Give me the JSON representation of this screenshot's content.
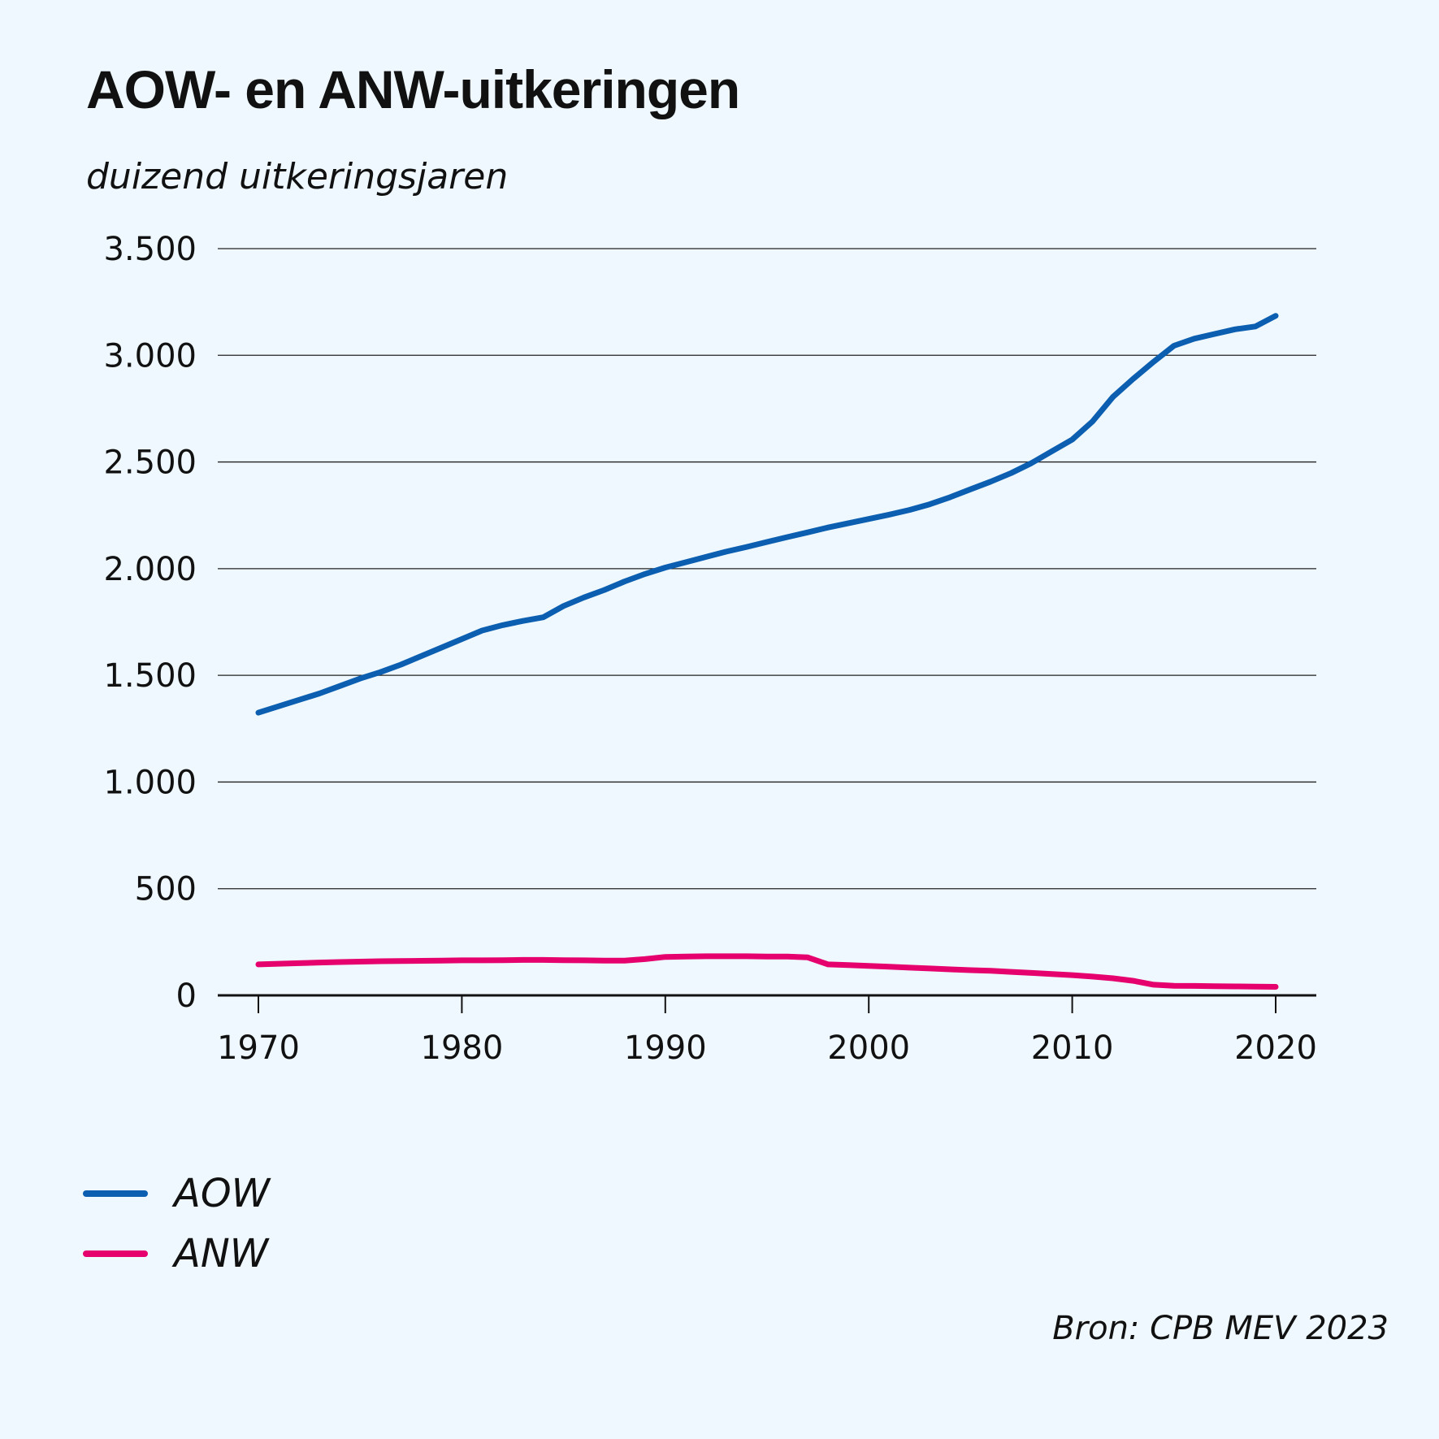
{
  "chart_data": {
    "type": "line",
    "title": "AOW- en ANW-uitkeringen",
    "subtitle": "duizend uitkeringsjaren",
    "source": "Bron: CPB MEV 2023",
    "xlim": [
      1970,
      2020
    ],
    "ylim": [
      0,
      3500
    ],
    "x_ticks": [
      1970,
      1980,
      1990,
      2000,
      2010,
      2020
    ],
    "y_ticks": [
      {
        "value": 0,
        "label": "0"
      },
      {
        "value": 500,
        "label": "500"
      },
      {
        "value": 1000,
        "label": "1.000"
      },
      {
        "value": 1500,
        "label": "1.500"
      },
      {
        "value": 2000,
        "label": "2.000"
      },
      {
        "value": 2500,
        "label": "2.500"
      },
      {
        "value": 3000,
        "label": "3.000"
      },
      {
        "value": 3500,
        "label": "3.500"
      }
    ],
    "grid": true,
    "legend_position": "bottom-left",
    "x": [
      1970,
      1971,
      1972,
      1973,
      1974,
      1975,
      1976,
      1977,
      1978,
      1979,
      1980,
      1981,
      1982,
      1983,
      1984,
      1985,
      1986,
      1987,
      1988,
      1989,
      1990,
      1991,
      1992,
      1993,
      1994,
      1995,
      1996,
      1997,
      1998,
      1999,
      2000,
      2001,
      2002,
      2003,
      2004,
      2005,
      2006,
      2007,
      2008,
      2009,
      2010,
      2011,
      2012,
      2013,
      2014,
      2015,
      2016,
      2017,
      2018,
      2019,
      2020
    ],
    "series": [
      {
        "name": "AOW",
        "color": "#0b5eb0",
        "values": [
          1325,
          1355,
          1385,
          1415,
          1450,
          1485,
          1515,
          1550,
          1590,
          1630,
          1670,
          1710,
          1735,
          1755,
          1772,
          1825,
          1865,
          1900,
          1940,
          1975,
          2005,
          2030,
          2055,
          2080,
          2102,
          2125,
          2148,
          2170,
          2193,
          2213,
          2233,
          2253,
          2275,
          2302,
          2335,
          2372,
          2408,
          2448,
          2495,
          2550,
          2605,
          2690,
          2805,
          2890,
          2970,
          3045,
          3078,
          3100,
          3122,
          3135,
          3185
        ]
      },
      {
        "name": "ANW",
        "color": "#e6006e",
        "values": [
          145,
          148,
          151,
          154,
          156,
          158,
          160,
          161,
          162,
          163,
          164,
          164,
          165,
          166,
          166,
          165,
          164,
          163,
          163,
          170,
          180,
          182,
          183,
          183,
          183,
          182,
          182,
          178,
          145,
          142,
          138,
          134,
          130,
          126,
          122,
          118,
          115,
          110,
          105,
          100,
          95,
          88,
          80,
          68,
          50,
          45,
          44,
          43,
          42,
          41,
          40
        ]
      }
    ]
  }
}
